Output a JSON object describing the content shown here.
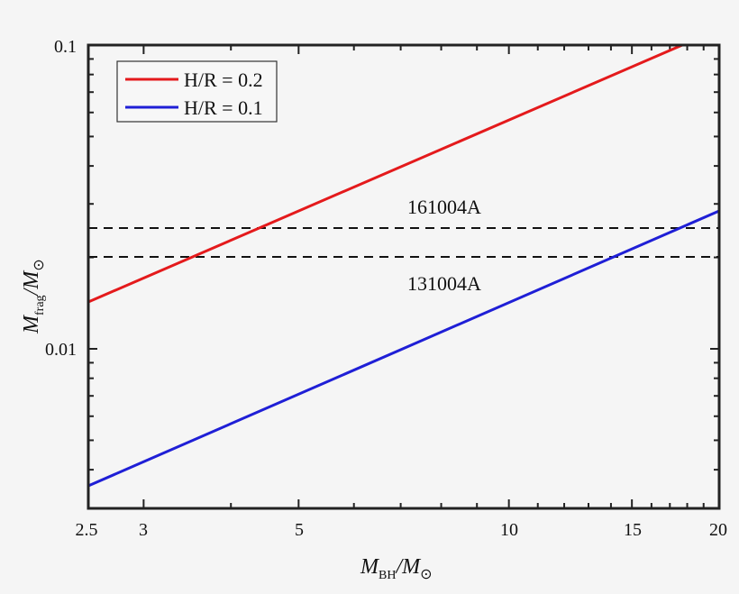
{
  "chart_data": {
    "type": "line",
    "title": "",
    "xlabel": "M_BH/M_⊙",
    "ylabel": "M_frag/M_⊙",
    "xscale": "log",
    "yscale": "log",
    "xlim": [
      2.5,
      20
    ],
    "ylim": [
      0.003,
      0.1
    ],
    "xticks": [
      2.5,
      3,
      5,
      10,
      15,
      20
    ],
    "xtick_labels": [
      "2.5",
      "3",
      "5",
      "10",
      "15",
      "20"
    ],
    "yticks": [
      0.01,
      0.1
    ],
    "ytick_labels": [
      "0.01",
      "0.1"
    ],
    "grid": false,
    "legend_position": "upper left",
    "series": [
      {
        "name": "H/R = 0.2",
        "color": "#e41a1c",
        "x": [
          2.5,
          17.5
        ],
        "y": [
          0.0143,
          0.1
        ]
      },
      {
        "name": "H/R = 0.1",
        "color": "#1f1fd6",
        "x": [
          2.5,
          20
        ],
        "y": [
          0.00354,
          0.0285
        ]
      }
    ],
    "hlines": [
      {
        "label": "161004A",
        "y": 0.025,
        "style": "dashed",
        "color": "#111111"
      },
      {
        "label": "131004A",
        "y": 0.02,
        "style": "dashed",
        "color": "#111111"
      }
    ],
    "annotations": [
      "161004A",
      "131004A"
    ]
  },
  "axes": {
    "x_title_main": "M",
    "x_title_sub": "BH",
    "x_title_sep": "/M",
    "x_title_sun": "⊙",
    "y_title_main": "M",
    "y_title_sub": "frag",
    "y_title_sep": "/M",
    "y_title_sun": "⊙",
    "xtick_labels": [
      "2.5",
      "3",
      "5",
      "10",
      "15",
      "20"
    ],
    "ytick_labels": [
      "0.01",
      "0.1"
    ]
  },
  "legend": {
    "items": [
      {
        "label": "H/R = 0.2",
        "color": "#e41a1c"
      },
      {
        "label": "H/R = 0.1",
        "color": "#1f1fd6"
      }
    ]
  },
  "annotations": {
    "upper": "161004A",
    "lower": "131004A"
  }
}
